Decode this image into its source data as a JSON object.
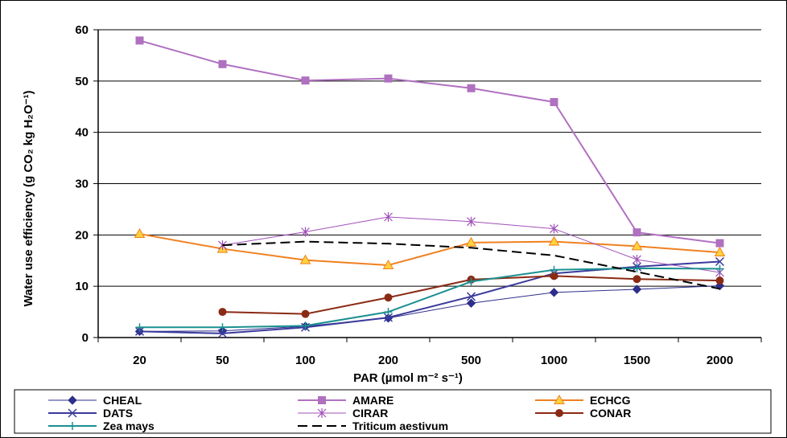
{
  "chart_data": {
    "type": "line",
    "categories": [
      "20",
      "50",
      "100",
      "200",
      "500",
      "1000",
      "1500",
      "2000"
    ],
    "ylim": [
      0,
      60
    ],
    "yticks": [
      "0",
      "10",
      "20",
      "30",
      "40",
      "50",
      "60"
    ],
    "xlabel": "PAR (µmol m⁻² s⁻¹)",
    "ylabel": "Water use efficiency (g CO₂ kg H₂O⁻¹)",
    "grid": "horizontal",
    "legend_position": "bottom",
    "series": [
      {
        "name": "CHEAL",
        "color": "#2e2e8c",
        "marker": "diamond",
        "dash": "",
        "width": 1,
        "values": [
          1.2,
          1.3,
          2.2,
          3.8,
          6.7,
          8.8,
          9.4,
          10.1
        ]
      },
      {
        "name": "AMARE",
        "color": "#b070c0",
        "marker": "square",
        "dash": "",
        "width": 2,
        "values": [
          57.9,
          53.3,
          50.1,
          50.5,
          48.6,
          45.9,
          20.5,
          18.4
        ]
      },
      {
        "name": "ECHCG",
        "color": "#f08020",
        "marker": "triangle",
        "dash": "",
        "width": 2,
        "values": [
          20.2,
          17.3,
          15.1,
          14.1,
          18.5,
          18.7,
          17.8,
          16.6
        ]
      },
      {
        "name": "DATS",
        "color": "#3a3a9c",
        "marker": "x",
        "dash": "",
        "width": 2,
        "values": [
          1.2,
          0.8,
          2.0,
          3.9,
          8.0,
          12.5,
          13.8,
          14.8
        ]
      },
      {
        "name": "CIRAR",
        "color": "#a050b8",
        "marker": "star",
        "dash": "",
        "width": 1,
        "values": [
          null,
          18.0,
          20.6,
          23.5,
          22.6,
          21.2,
          15.2,
          12.7
        ]
      },
      {
        "name": "CONAR",
        "color": "#8b2a14",
        "marker": "circle",
        "dash": "",
        "width": 2,
        "values": [
          null,
          5.0,
          4.6,
          7.8,
          11.3,
          12.0,
          11.4,
          11.1
        ]
      },
      {
        "name": "Zea mays",
        "color": "#1a9090",
        "marker": "plus",
        "dash": "",
        "width": 2,
        "values": [
          2.0,
          2.0,
          2.3,
          5.0,
          10.9,
          13.2,
          13.5,
          13.4
        ]
      },
      {
        "name": "Triticum aestivum",
        "color": "#000000",
        "marker": "none",
        "dash": "12,6",
        "width": 2,
        "values": [
          null,
          18.0,
          18.7,
          18.3,
          17.5,
          16.0,
          12.8,
          9.5
        ]
      }
    ]
  }
}
